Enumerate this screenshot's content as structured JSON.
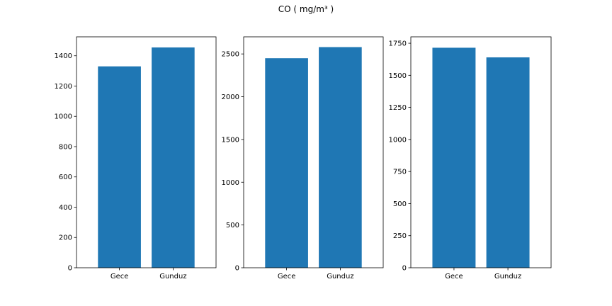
{
  "suptitle": "CO ( mg/m³ )",
  "colors": {
    "bar": "#1f77b4",
    "axis": "#000000"
  },
  "chart_data": [
    {
      "type": "bar",
      "categories": [
        "Gece",
        "Gunduz"
      ],
      "values": [
        1330,
        1455
      ],
      "ylim": [
        0,
        1525
      ],
      "yticks": [
        0,
        200,
        400,
        600,
        800,
        1000,
        1200,
        1400
      ],
      "grid": false
    },
    {
      "type": "bar",
      "categories": [
        "Gece",
        "Gunduz"
      ],
      "values": [
        2450,
        2580
      ],
      "ylim": [
        0,
        2700
      ],
      "yticks": [
        0,
        500,
        1000,
        1500,
        2000,
        2500
      ],
      "grid": false
    },
    {
      "type": "bar",
      "categories": [
        "Gece",
        "Gunduz"
      ],
      "values": [
        1715,
        1640
      ],
      "ylim": [
        0,
        1800
      ],
      "yticks": [
        0,
        250,
        500,
        750,
        1000,
        1250,
        1500,
        1750
      ],
      "grid": false
    }
  ]
}
